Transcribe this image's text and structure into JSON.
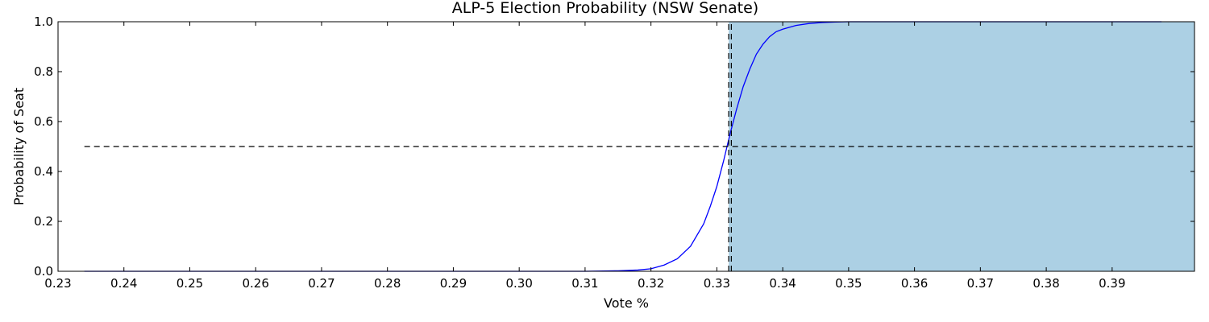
{
  "chart_data": {
    "type": "line",
    "title": "ALP-5 Election Probability (NSW Senate)",
    "xlabel": "Vote %",
    "ylabel": "Probability of Seat",
    "xlim": [
      0.23,
      0.4025
    ],
    "ylim": [
      0.0,
      1.0
    ],
    "x_ticks": [
      0.23,
      0.24,
      0.25,
      0.26,
      0.27,
      0.28,
      0.29,
      0.3,
      0.31,
      0.32,
      0.33,
      0.34,
      0.35,
      0.36,
      0.37,
      0.38,
      0.39
    ],
    "x_tick_labels": [
      "0.23",
      "0.24",
      "0.25",
      "0.26",
      "0.27",
      "0.28",
      "0.29",
      "0.30",
      "0.31",
      "0.32",
      "0.33",
      "0.34",
      "0.35",
      "0.36",
      "0.37",
      "0.38",
      "0.39"
    ],
    "y_ticks": [
      0.0,
      0.2,
      0.4,
      0.6,
      0.8,
      1.0
    ],
    "y_tick_labels": [
      "0.0",
      "0.2",
      "0.4",
      "0.6",
      "0.8",
      "1.0"
    ],
    "grid": false,
    "series": [
      {
        "x": [
          0.234,
          0.3,
          0.31,
          0.315,
          0.318,
          0.32,
          0.322,
          0.324,
          0.326,
          0.328,
          0.329,
          0.33,
          0.331,
          0.332,
          0.333,
          0.334,
          0.335,
          0.336,
          0.337,
          0.338,
          0.339,
          0.34,
          0.342,
          0.344,
          0.346,
          0.348,
          0.35,
          0.36,
          0.3975
        ],
        "y": [
          0.0,
          0.0,
          0.0,
          0.002,
          0.005,
          0.01,
          0.025,
          0.05,
          0.1,
          0.19,
          0.26,
          0.34,
          0.44,
          0.55,
          0.65,
          0.74,
          0.81,
          0.87,
          0.91,
          0.94,
          0.96,
          0.97,
          0.985,
          0.993,
          0.997,
          0.999,
          1.0,
          1.0,
          1.0
        ],
        "color": "#0000ff"
      }
    ],
    "shaded_region": {
      "x_from": 0.3318,
      "x_to": 0.4025,
      "y_from": 0.0,
      "y_to": 1.0,
      "color": "#acd0e4"
    },
    "reference_lines": [
      {
        "orientation": "horizontal",
        "y": 0.5,
        "x_from": 0.234,
        "x_to": 0.4025,
        "style": "dashed"
      },
      {
        "orientation": "vertical",
        "x": 0.3318,
        "y_from": 0.0,
        "y_to": 1.0,
        "style": "dashed"
      },
      {
        "orientation": "vertical",
        "x": 0.3322,
        "y_from": 0.0,
        "y_to": 1.0,
        "style": "dashed"
      }
    ]
  }
}
